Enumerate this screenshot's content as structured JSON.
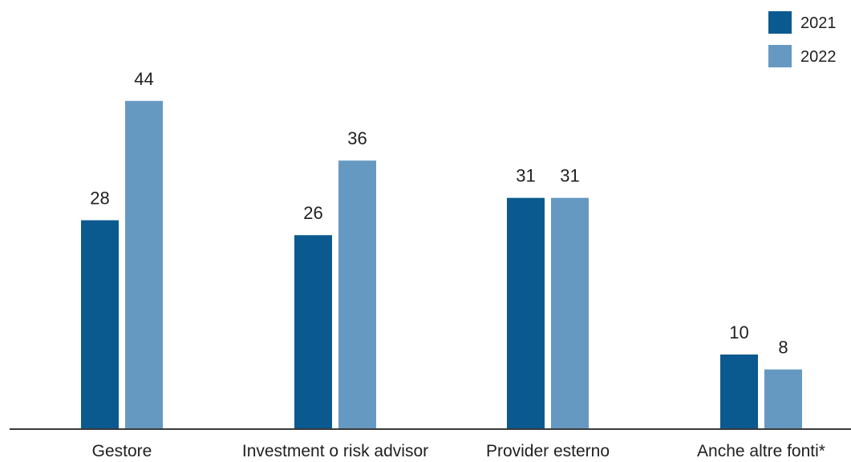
{
  "chart_data": {
    "type": "bar",
    "categories": [
      "Gestore",
      "Investment o risk advisor",
      "Provider esterno",
      "Anche altre fonti*"
    ],
    "series": [
      {
        "name": "2021",
        "values": [
          28,
          26,
          31,
          10
        ],
        "color": "#0b5a8f"
      },
      {
        "name": "2022",
        "values": [
          44,
          36,
          31,
          8
        ],
        "color": "#6699c2"
      }
    ],
    "ylim": [
      0,
      50
    ],
    "legend": "top-right",
    "grid": false
  }
}
